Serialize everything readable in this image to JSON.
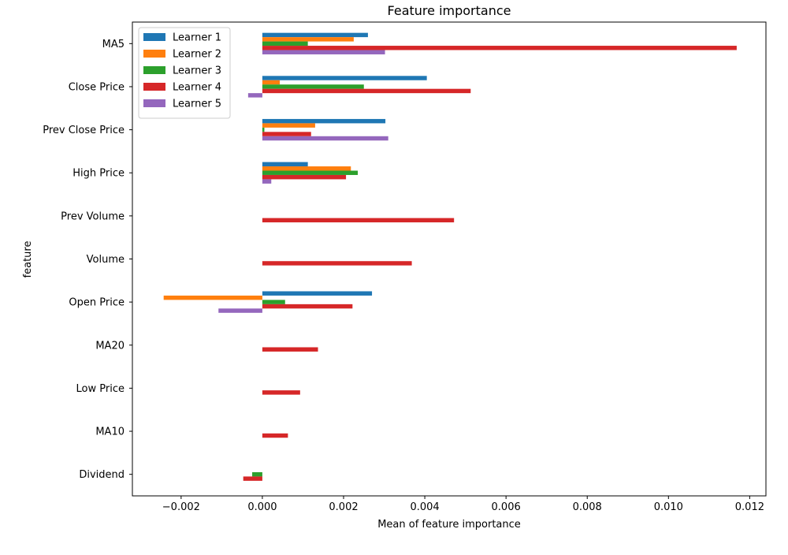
{
  "chart_data": {
    "type": "bar",
    "orientation": "horizontal",
    "title": "Feature importance",
    "xlabel": "Mean of feature importance",
    "ylabel": "feature",
    "xlim": [
      -0.0032,
      0.0124
    ],
    "xticks": [
      -0.002,
      0.0,
      0.002,
      0.004,
      0.006,
      0.008,
      0.01,
      0.012
    ],
    "xtick_labels": [
      "−0.002",
      "0.000",
      "0.002",
      "0.004",
      "0.006",
      "0.008",
      "0.010",
      "0.012"
    ],
    "grid": false,
    "legend_position": "upper-left",
    "categories": [
      "MA5",
      "Close Price",
      "Prev Close Price",
      "High Price",
      "Prev Volume",
      "Volume",
      "Open Price",
      "MA20",
      "Low Price",
      "MA10",
      "Dividend"
    ],
    "series": [
      {
        "name": "Learner 1",
        "color": "#1f77b4",
        "values": [
          0.0026,
          0.00405,
          0.00303,
          0.00112,
          0.0,
          0.0,
          0.0027,
          0.0,
          0.0,
          0.0,
          0.0
        ]
      },
      {
        "name": "Learner 2",
        "color": "#ff7f0e",
        "values": [
          0.00225,
          0.00043,
          0.0013,
          0.00218,
          0.0,
          0.0,
          -0.00243,
          0.0,
          0.0,
          0.0,
          0.0
        ]
      },
      {
        "name": "Learner 3",
        "color": "#2ca02c",
        "values": [
          0.00112,
          0.0025,
          5e-05,
          0.00235,
          0.0,
          0.0,
          0.00056,
          0.0,
          0.0,
          0.0,
          -0.00025
        ]
      },
      {
        "name": "Learner 4",
        "color": "#d62728",
        "values": [
          0.01168,
          0.00513,
          0.0012,
          0.00206,
          0.00472,
          0.00368,
          0.00222,
          0.00137,
          0.00093,
          0.00063,
          -0.00047
        ]
      },
      {
        "name": "Learner 5",
        "color": "#9467bd",
        "values": [
          0.00302,
          -0.00035,
          0.0031,
          0.00022,
          0.0,
          0.0,
          -0.00108,
          0.0,
          0.0,
          0.0,
          0.0
        ]
      }
    ]
  }
}
